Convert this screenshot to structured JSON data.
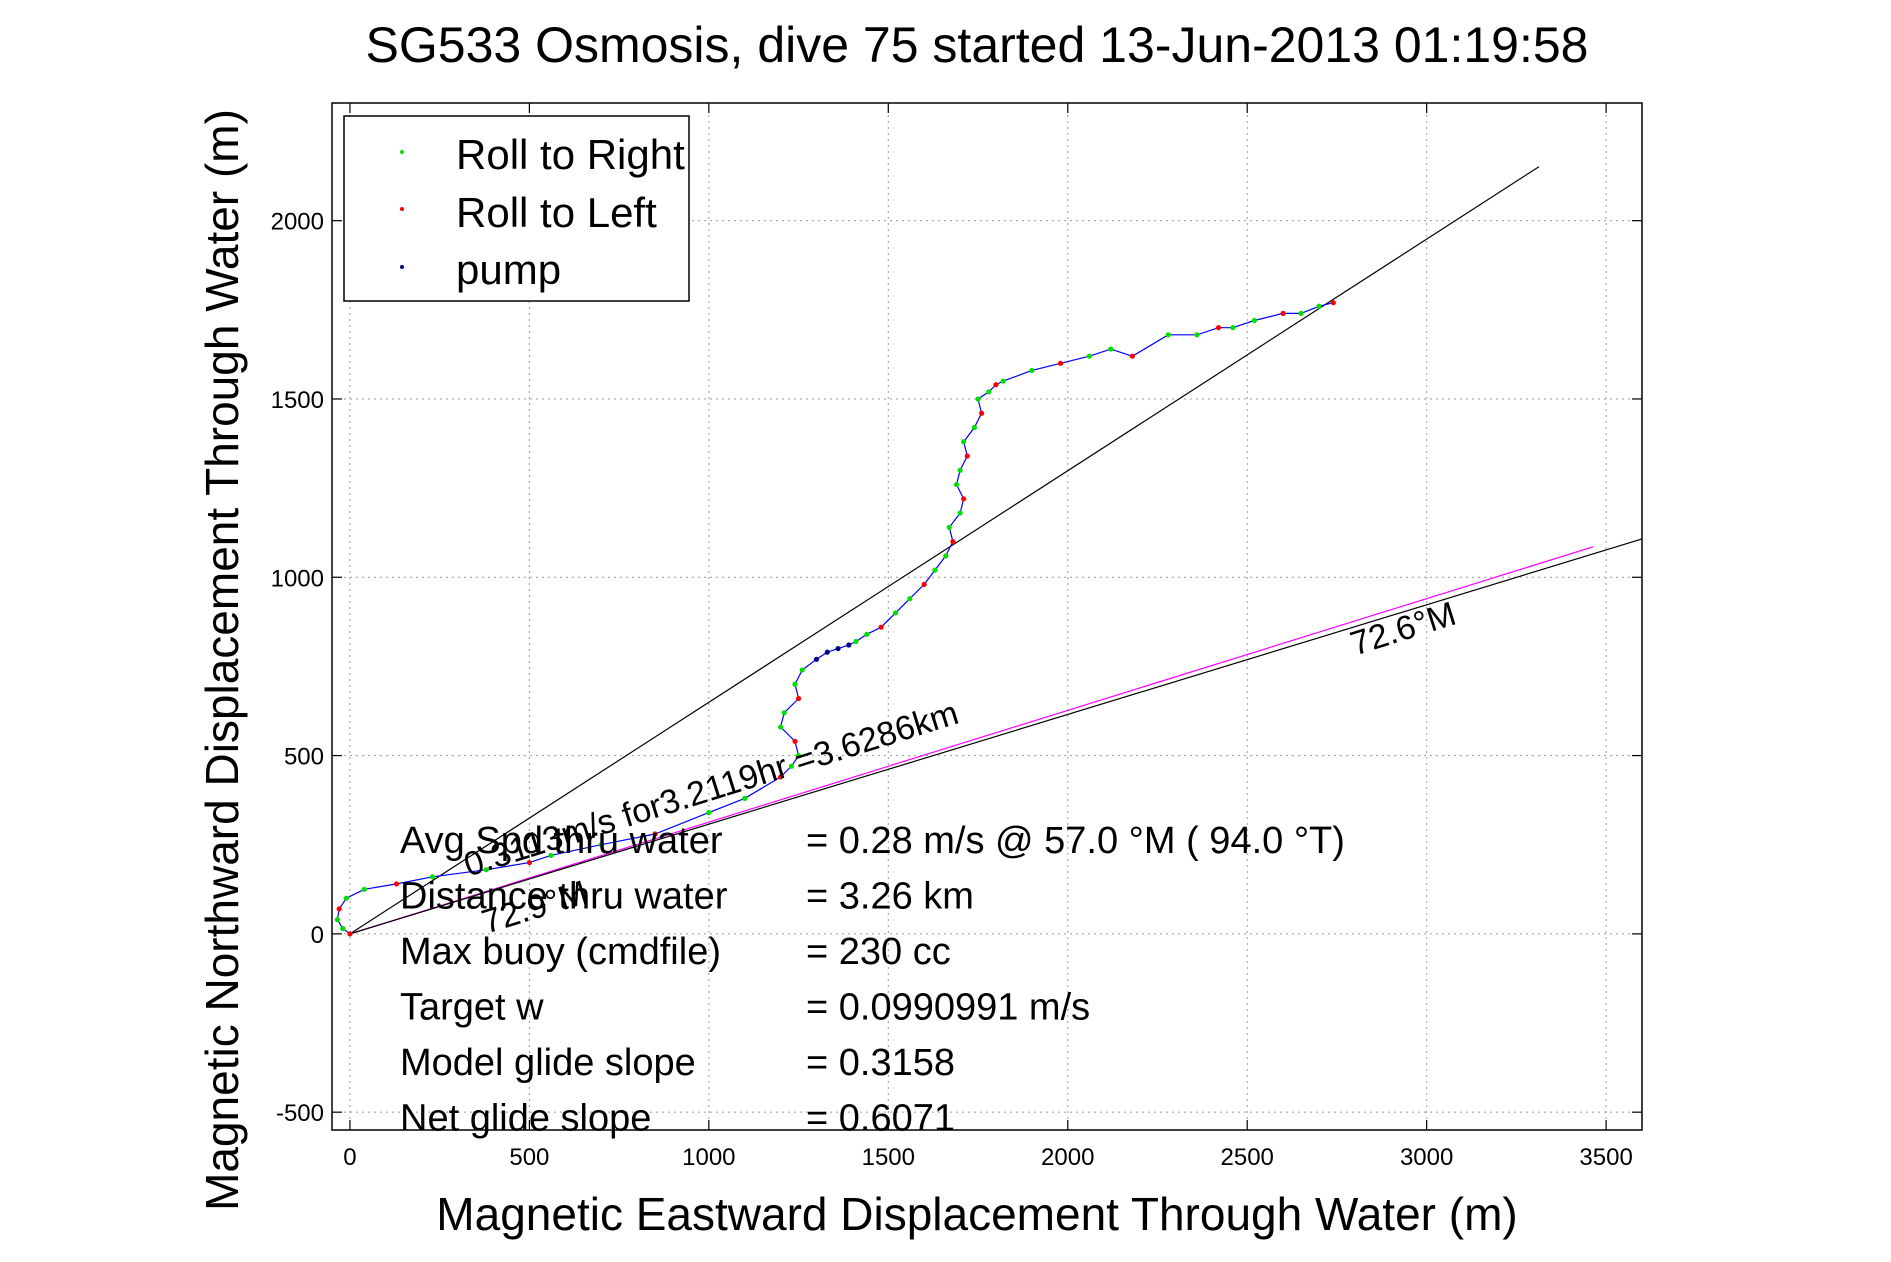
{
  "chart_data": {
    "type": "scatter",
    "title": "SG533 Osmosis, dive 75 started 13-Jun-2013 01:19:58",
    "xlabel": "Magnetic Eastward Displacement Through Water (m)",
    "ylabel": "Magnetic Northward Displacement Through Water (m)",
    "xlim": [
      -50,
      3600
    ],
    "ylim": [
      -550,
      2330
    ],
    "xticks": [
      0,
      500,
      1000,
      1500,
      2000,
      2500,
      3000,
      3500
    ],
    "xtick_labels": [
      "0",
      "500",
      "1000",
      "1500",
      "2000",
      "2500",
      "3000",
      "3500"
    ],
    "yticks": [
      -500,
      0,
      500,
      1000,
      1500,
      2000
    ],
    "ytick_labels": [
      "-500",
      "0",
      "500",
      "1000",
      "1500",
      "2000"
    ],
    "grid": true,
    "legend_position": "top-left",
    "legend": [
      {
        "label": "Roll to Right",
        "color": "#00e000"
      },
      {
        "label": "Roll to Left",
        "color": "#ff0000"
      },
      {
        "label": "pump",
        "color": "#000080"
      }
    ],
    "track_color": "#0000ff",
    "track": {
      "x": [
        0,
        -20,
        -35,
        -30,
        -10,
        40,
        130,
        230,
        380,
        500,
        560,
        700,
        850,
        1000,
        1100,
        1200,
        1230,
        1250,
        1240,
        1200,
        1210,
        1250,
        1240,
        1260,
        1300,
        1330,
        1360,
        1390,
        1410,
        1440,
        1480,
        1520,
        1560,
        1600,
        1630,
        1660,
        1680,
        1670,
        1700,
        1710,
        1690,
        1700,
        1720,
        1710,
        1740,
        1760,
        1750,
        1780,
        1800,
        1820,
        1900,
        1980,
        2060,
        2120,
        2180,
        2280,
        2360,
        2420,
        2460,
        2520,
        2600,
        2650,
        2700,
        2740
      ],
      "y": [
        0,
        15,
        40,
        70,
        100,
        125,
        140,
        160,
        180,
        200,
        220,
        250,
        280,
        340,
        380,
        440,
        470,
        500,
        540,
        580,
        620,
        660,
        700,
        740,
        770,
        790,
        800,
        810,
        820,
        840,
        860,
        900,
        940,
        980,
        1020,
        1060,
        1100,
        1140,
        1180,
        1220,
        1260,
        1300,
        1340,
        1380,
        1420,
        1460,
        1500,
        1520,
        1540,
        1550,
        1580,
        1600,
        1620,
        1640,
        1620,
        1680,
        1680,
        1700,
        1700,
        1720,
        1740,
        1740,
        1760,
        1770
      ]
    },
    "ref_lines": [
      {
        "kind": "heading",
        "color": "#000000",
        "angle_deg": 57.0,
        "length_m": 3950
      },
      {
        "kind": "heading",
        "color": "#ff00ff",
        "angle_deg": 72.6,
        "length_m": 3630
      },
      {
        "kind": "heading",
        "color": "#000000",
        "angle_deg": 72.9,
        "length_m": 3800
      }
    ],
    "annotations": [
      {
        "text": "72.6°M",
        "x": 2800,
        "y": 780,
        "rotate": -17.4
      },
      {
        "text": "0.3113m/s for3.2119hr =3.6286km",
        "x": 330,
        "y": 160,
        "rotate": -17.4
      },
      {
        "text": "72.9°M",
        "x": 380,
        "y": 0,
        "rotate": -17.1
      }
    ],
    "stats": [
      {
        "label": "Avg Spd thru water",
        "value": "=  0.28 m/s @  57.0 °M ( 94.0 °T)"
      },
      {
        "label": "Distance thru water",
        "value": "=  3.26 km"
      },
      {
        "label": "Max buoy (cmdfile)",
        "value": "= 230 cc"
      },
      {
        "label": "Target w",
        "value": "= 0.0990991 m/s"
      },
      {
        "label": "Model glide slope",
        "value": "= 0.3158"
      },
      {
        "label": "Net glide slope",
        "value": "= 0.6071"
      }
    ]
  }
}
